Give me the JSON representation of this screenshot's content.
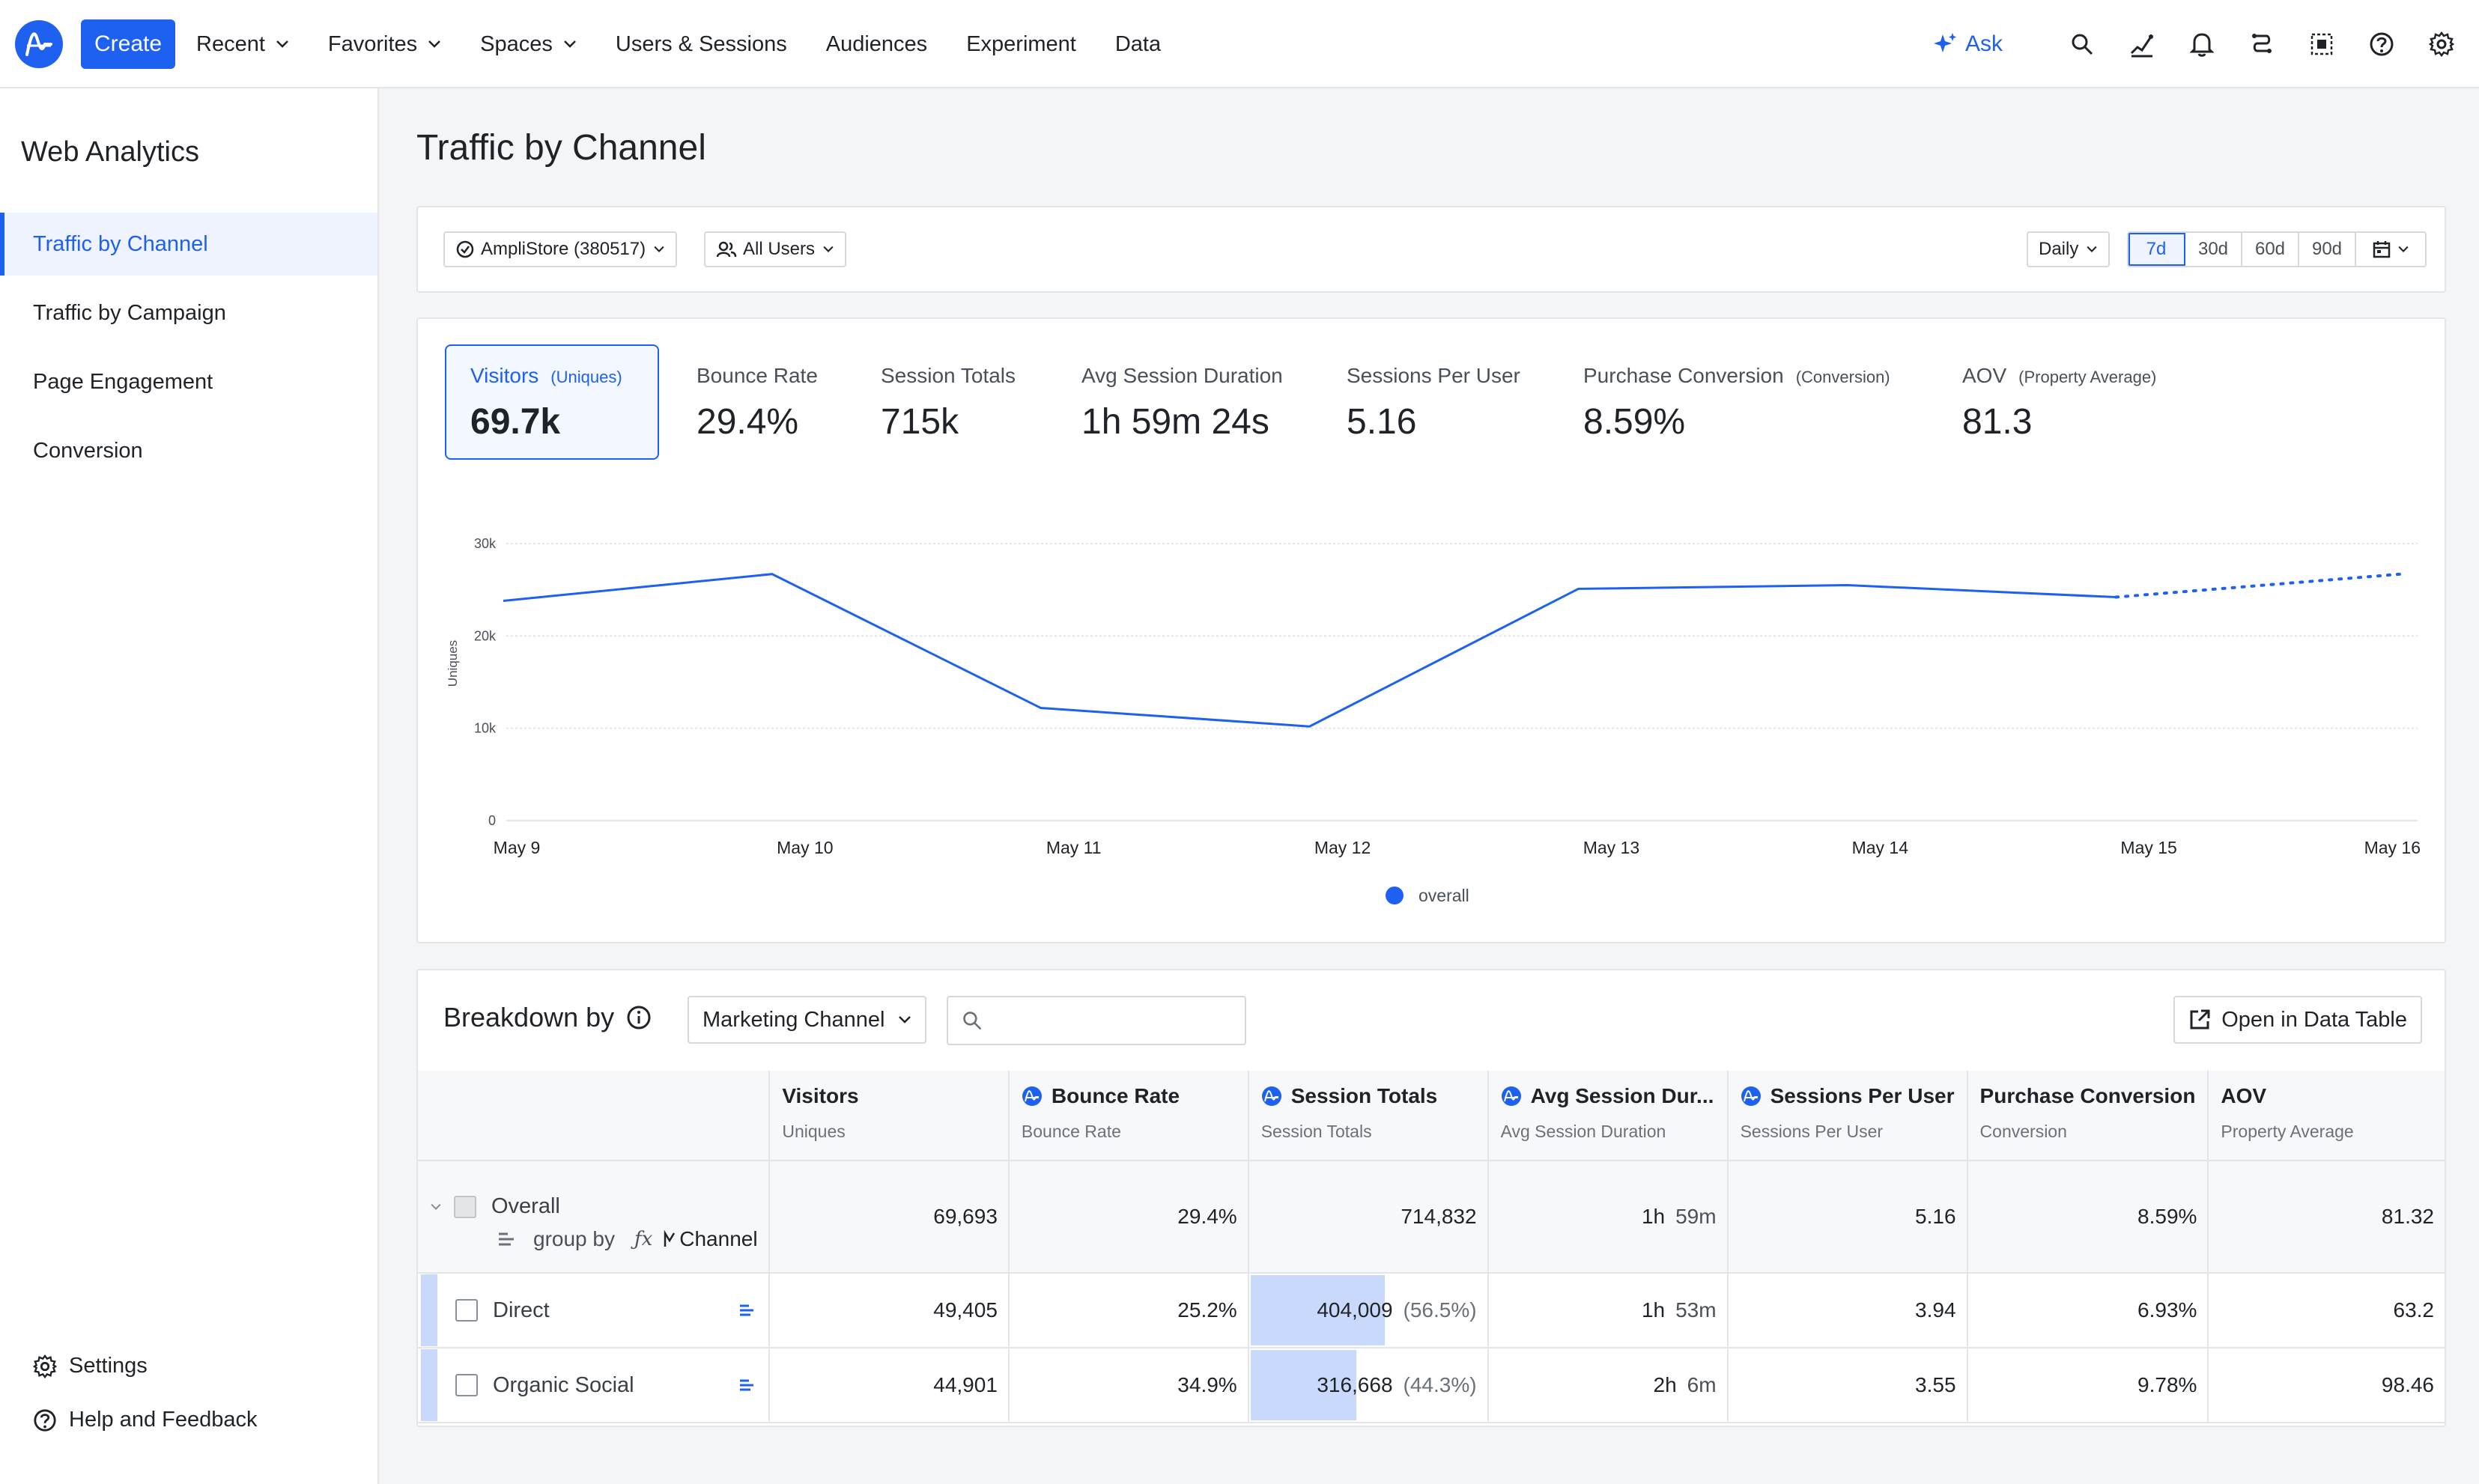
{
  "nav": {
    "create": "Create",
    "items": [
      "Recent",
      "Favorites",
      "Spaces",
      "Users & Sessions",
      "Audiences",
      "Experiment",
      "Data"
    ],
    "ask": "Ask"
  },
  "sidebar": {
    "title": "Web Analytics",
    "items": [
      "Traffic by Channel",
      "Traffic by Campaign",
      "Page Engagement",
      "Conversion"
    ],
    "settings": "Settings",
    "help": "Help and Feedback"
  },
  "page": {
    "title": "Traffic by Channel"
  },
  "filters": {
    "project": "AmpliStore (380517)",
    "segment": "All Users",
    "interval": "Daily",
    "ranges": [
      "7d",
      "30d",
      "60d",
      "90d"
    ],
    "selected_range": "7d"
  },
  "metrics": [
    {
      "label": "Visitors",
      "sub": "(Uniques)",
      "value": "69.7k"
    },
    {
      "label": "Bounce Rate",
      "sub": "",
      "value": "29.4%"
    },
    {
      "label": "Session Totals",
      "sub": "",
      "value": "715k"
    },
    {
      "label": "Avg Session Duration",
      "sub": "",
      "value": "1h 59m 24s"
    },
    {
      "label": "Sessions Per User",
      "sub": "",
      "value": "5.16"
    },
    {
      "label": "Purchase Conversion",
      "sub": "(Conversion)",
      "value": "8.59%"
    },
    {
      "label": "AOV",
      "sub": "(Property Average)",
      "value": "81.3"
    }
  ],
  "chart_data": {
    "type": "line",
    "x": [
      "May 9",
      "May 10",
      "May 11",
      "May 12",
      "May 13",
      "May 14",
      "May 15",
      "May 16"
    ],
    "series": [
      {
        "name": "overall",
        "values": [
          23800,
          26700,
          12200,
          10200,
          25100,
          25500,
          24200,
          26700
        ],
        "incomplete_from": "May 15"
      }
    ],
    "ylabel": "Uniques",
    "yticks": [
      "0",
      "10k",
      "20k",
      "30k"
    ],
    "ylim": [
      0,
      30000
    ],
    "grid": true,
    "legend": "bottom-center",
    "color": "#1e61f0"
  },
  "breakdown": {
    "title": "Breakdown by",
    "dimension": "Marketing Channel",
    "search_placeholder": "",
    "open_label": "Open in Data Table",
    "columns": [
      {
        "name": "Visitors",
        "sub": "Uniques"
      },
      {
        "name": "Bounce Rate",
        "sub": "Bounce Rate"
      },
      {
        "name": "Session Totals",
        "sub": "Session Totals"
      },
      {
        "name": "Avg Session Dur...",
        "sub": "Avg Session Duration"
      },
      {
        "name": "Sessions Per User",
        "sub": "Sessions Per User"
      },
      {
        "name": "Purchase Conversion",
        "sub": "Conversion"
      },
      {
        "name": "AOV",
        "sub": "Property Average"
      }
    ],
    "overall": {
      "label": "Overall",
      "group_by": "group by",
      "channel": "Channel",
      "visitors": "69,693",
      "bounce": "29.4%",
      "sessions": "714,832",
      "dur_h": "1h",
      "dur_m": "59m",
      "spu": "5.16",
      "conv": "8.59%",
      "aov": "81.32"
    },
    "rows": [
      {
        "label": "Direct",
        "visitors": "49,405",
        "bounce": "25.2%",
        "sessions": "404,009",
        "sessions_pct": "(56.5%)",
        "share": 0.565,
        "dur_h": "1h",
        "dur_m": "53m",
        "spu": "3.94",
        "conv": "6.93%",
        "aov": "63.2"
      },
      {
        "label": "Organic Social",
        "visitors": "44,901",
        "bounce": "34.9%",
        "sessions": "316,668",
        "sessions_pct": "(44.3%)",
        "share": 0.443,
        "dur_h": "2h",
        "dur_m": "6m",
        "spu": "3.55",
        "conv": "9.78%",
        "aov": "98.46"
      }
    ]
  }
}
